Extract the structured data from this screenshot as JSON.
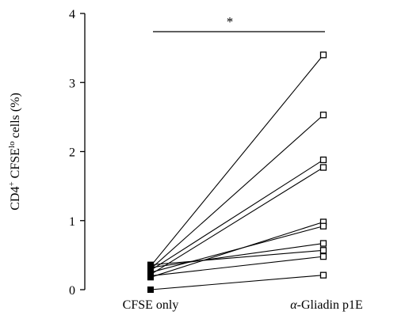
{
  "chart_data": {
    "type": "scatter",
    "categories": [
      "CFSE only",
      "α-Gliadin p1E"
    ],
    "category_label_parts": [
      [
        {
          "text": "CFSE only",
          "italic": false
        }
      ],
      [
        {
          "text": "α",
          "italic": true
        },
        {
          "text": "-Gliadin p1E",
          "italic": false
        }
      ]
    ],
    "ylabel_parts": [
      {
        "text": "CD4",
        "sup": false
      },
      {
        "text": "+",
        "sup": true
      },
      {
        "text": " CFSE",
        "sup": false
      },
      {
        "text": "lo",
        "sup": true
      },
      {
        "text": " cells (%)",
        "sup": false
      }
    ],
    "ylim": [
      0,
      4
    ],
    "yticks": [
      "0",
      "1",
      "2",
      "3",
      "4"
    ],
    "pairs": [
      [
        0.34,
        3.4
      ],
      [
        0.3,
        2.53
      ],
      [
        0.28,
        1.88
      ],
      [
        0.22,
        1.77
      ],
      [
        0.18,
        0.98
      ],
      [
        0.25,
        0.92
      ],
      [
        0.32,
        0.67
      ],
      [
        0.36,
        0.57
      ],
      [
        0.2,
        0.48
      ],
      [
        0.0,
        0.21
      ]
    ],
    "significance": {
      "text": "*",
      "between": [
        "CFSE only",
        "α-Gliadin p1E"
      ]
    },
    "legend": "none",
    "grid": false
  }
}
